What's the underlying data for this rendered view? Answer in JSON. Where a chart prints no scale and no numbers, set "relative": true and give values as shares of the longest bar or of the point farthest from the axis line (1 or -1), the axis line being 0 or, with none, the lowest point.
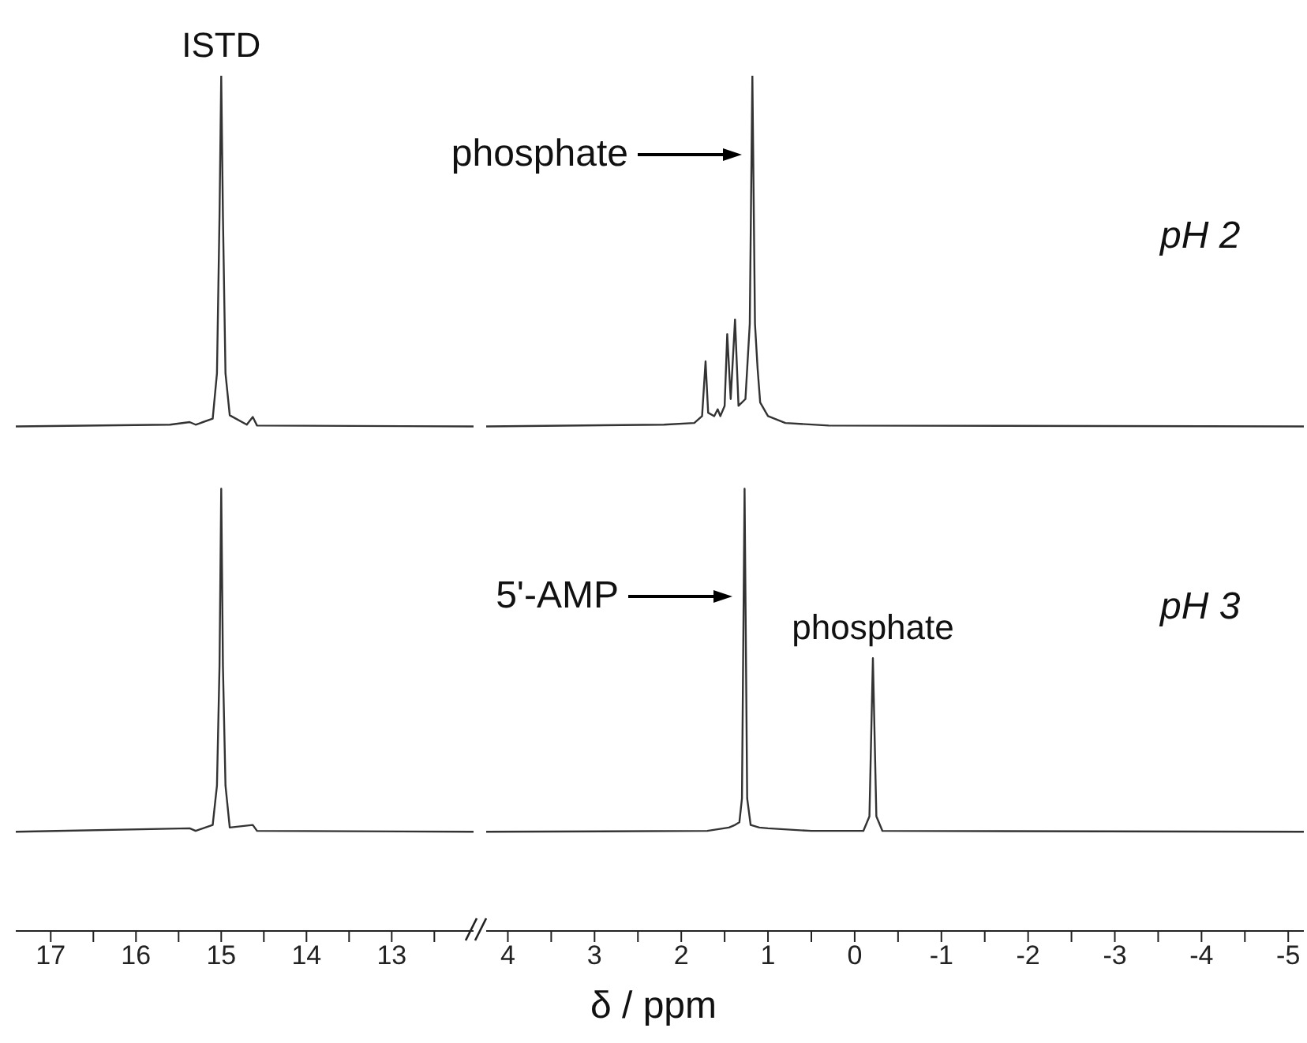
{
  "chart_data": [
    {
      "type": "line",
      "relative": true,
      "tick_labels": "x",
      "xlim": [
        17.41,
        12.04
      ],
      "xticks": [
        17,
        {
          "value": 16.5,
          "label": null
        },
        16,
        {
          "value": 15.5,
          "label": null
        },
        15,
        {
          "value": 14.5,
          "label": null
        },
        14,
        {
          "value": 13.5,
          "label": null
        },
        13,
        {
          "value": 12.5,
          "label": null
        }
      ],
      "series": [
        {
          "color": "#333333",
          "x": [
            17.41,
            15.6,
            15.37,
            15.3,
            15.1,
            15.05,
            15.02,
            15.0,
            14.98,
            14.95,
            14.9,
            14.7,
            14.63,
            14.58,
            12.04
          ],
          "values": [
            0.59,
            0.592,
            0.595,
            0.592,
            0.599,
            0.652,
            0.836,
            1,
            0.836,
            0.652,
            0.603,
            0.592,
            0.601,
            0.591,
            0.59
          ]
        },
        {
          "color": "#333333",
          "x": [
            17.41,
            15.37,
            15.3,
            15.1,
            15.05,
            15.02,
            15.0,
            14.98,
            14.95,
            14.9,
            14.63,
            14.58,
            12.04
          ],
          "values": [
            0.116,
            0.12,
            0.117,
            0.124,
            0.17,
            0.31,
            0.517,
            0.31,
            0.17,
            0.121,
            0.124,
            0.117,
            0.116
          ]
        }
      ],
      "annotations": [
        {
          "text": "ISTD",
          "x": 15.0,
          "y": 1
        }
      ]
    },
    {
      "type": "line",
      "relative": true,
      "tick_labels": "x",
      "xlim": [
        4.25,
        -5.18
      ],
      "xlabel": "δ / ppm",
      "xticks": [
        4,
        {
          "value": 3.5,
          "label": null
        },
        3,
        {
          "value": 2.5,
          "label": null
        },
        2,
        {
          "value": 1.5,
          "label": null
        },
        1,
        {
          "value": 0.5,
          "label": null
        },
        0,
        {
          "value": -0.5,
          "label": null
        },
        -1,
        {
          "value": -1.5,
          "label": null
        },
        -2,
        {
          "value": -2.5,
          "label": null
        },
        -3,
        {
          "value": -3.5,
          "label": null
        },
        -4,
        {
          "value": -4.5,
          "label": null
        },
        -5
      ],
      "series": [
        {
          "color": "#333333",
          "x": [
            4.25,
            2.2,
            1.85,
            1.76,
            1.72,
            1.69,
            1.62,
            1.58,
            1.55,
            1.5,
            1.47,
            1.43,
            1.38,
            1.34,
            1.26,
            1.21,
            1.18,
            1.15,
            1.12,
            1.09,
            1.0,
            0.8,
            0.3,
            -5.18
          ],
          "values": [
            0.59,
            0.592,
            0.594,
            0.602,
            0.666,
            0.606,
            0.602,
            0.61,
            0.602,
            0.614,
            0.698,
            0.622,
            0.715,
            0.614,
            0.622,
            0.71,
            1,
            0.71,
            0.658,
            0.618,
            0.602,
            0.594,
            0.591,
            0.59
          ]
        },
        {
          "color": "#333333",
          "x": [
            4.25,
            1.7,
            1.45,
            1.38,
            1.33,
            1.3,
            1.27,
            1.24,
            1.2,
            1.1,
            1.0,
            0.5,
            -0.1,
            -0.17,
            -0.21,
            -0.25,
            -0.32,
            -5.18
          ],
          "values": [
            0.116,
            0.117,
            0.121,
            0.124,
            0.127,
            0.155,
            0.517,
            0.155,
            0.124,
            0.121,
            0.12,
            0.117,
            0.117,
            0.134,
            0.319,
            0.134,
            0.117,
            0.116
          ]
        }
      ],
      "annotations": [
        {
          "text": "phosphate",
          "x": -0.21,
          "y": 0.319
        },
        "phosphate",
        "5'-AMP",
        "pH 2",
        "pH 3"
      ]
    }
  ]
}
